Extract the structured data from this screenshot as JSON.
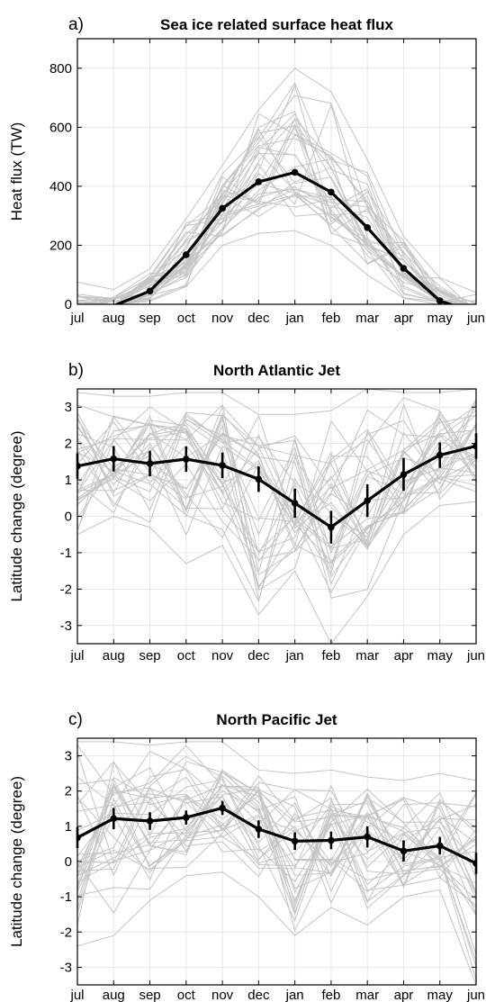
{
  "chart_data": [
    {
      "type": "line",
      "panel": "a)",
      "title": "Sea ice related surface heat flux",
      "xlabel": "",
      "ylabel": "Heat flux (TW)",
      "categories": [
        "jul",
        "aug",
        "sep",
        "oct",
        "nov",
        "dec",
        "jan",
        "feb",
        "mar",
        "apr",
        "may",
        "jun"
      ],
      "ylim": [
        0,
        900
      ],
      "yticks": [
        0,
        200,
        400,
        600,
        800
      ],
      "grid": true,
      "colors": {
        "members": "#c4c4c4",
        "mean": "#000000"
      },
      "mean_series": {
        "values": [
          -25,
          -5,
          45,
          168,
          325,
          415,
          447,
          380,
          260,
          122,
          12,
          -30
        ],
        "errorbars": null
      },
      "members_range": {
        "low": [
          0,
          0,
          10,
          60,
          200,
          240,
          250,
          200,
          100,
          20,
          0,
          0
        ],
        "high": [
          75,
          50,
          120,
          290,
          470,
          660,
          800,
          720,
          490,
          230,
          90,
          40
        ]
      }
    },
    {
      "type": "line",
      "panel": "b)",
      "title": "North Atlantic Jet",
      "xlabel": "",
      "ylabel": "Latitude change (degree)",
      "categories": [
        "jul",
        "aug",
        "sep",
        "oct",
        "nov",
        "dec",
        "jan",
        "feb",
        "mar",
        "apr",
        "may",
        "jun"
      ],
      "ylim": [
        -3.5,
        3.5
      ],
      "yticks": [
        -3,
        -2,
        -1,
        0,
        1,
        2,
        3
      ],
      "grid": true,
      "colors": {
        "members": "#c4c4c4",
        "mean": "#000000"
      },
      "mean_series": {
        "values": [
          1.38,
          1.58,
          1.45,
          1.57,
          1.4,
          1.02,
          0.36,
          -0.3,
          0.43,
          1.15,
          1.68,
          1.93
        ],
        "errorbars": [
          0.35,
          0.35,
          0.35,
          0.35,
          0.35,
          0.35,
          0.4,
          0.45,
          0.45,
          0.45,
          0.35,
          0.35
        ]
      },
      "members_range": {
        "low": [
          -0.5,
          0.0,
          -0.3,
          -1.3,
          -0.8,
          -2.7,
          -1.5,
          -3.5,
          -2.2,
          -0.5,
          0.3,
          0.4
        ],
        "high": [
          3.4,
          3.3,
          3.3,
          3.4,
          3.4,
          2.8,
          2.8,
          2.9,
          3.5,
          3.4,
          3.4,
          3.5
        ]
      }
    },
    {
      "type": "line",
      "panel": "c)",
      "title": "North Pacific Jet",
      "xlabel": "",
      "ylabel": "Latitude change (degree)",
      "categories": [
        "jul",
        "aug",
        "sep",
        "oct",
        "nov",
        "dec",
        "jan",
        "feb",
        "mar",
        "apr",
        "may",
        "jun"
      ],
      "ylim": [
        -3.5,
        3.5
      ],
      "yticks": [
        -3,
        -2,
        -1,
        0,
        1,
        2,
        3
      ],
      "grid": true,
      "colors": {
        "members": "#c4c4c4",
        "mean": "#000000"
      },
      "mean_series": {
        "values": [
          0.68,
          1.22,
          1.15,
          1.25,
          1.52,
          0.92,
          0.58,
          0.6,
          0.7,
          0.3,
          0.45,
          -0.05
        ],
        "errorbars": [
          0.3,
          0.3,
          0.25,
          0.2,
          0.2,
          0.25,
          0.25,
          0.25,
          0.3,
          0.3,
          0.25,
          0.3
        ]
      },
      "members_range": {
        "low": [
          -2.4,
          -2.1,
          -1.1,
          -0.4,
          -0.3,
          -1.0,
          -2.1,
          -1.3,
          -1.8,
          -1.0,
          -0.8,
          -3.5
        ],
        "high": [
          3.4,
          3.4,
          3.3,
          3.4,
          3.4,
          2.6,
          2.5,
          2.6,
          2.4,
          2.3,
          2.5,
          2.3
        ]
      }
    }
  ]
}
